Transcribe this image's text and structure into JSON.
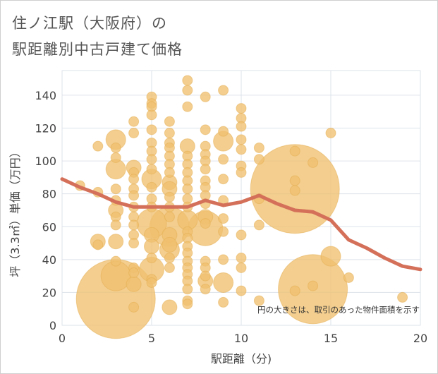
{
  "chart_data": {
    "type": "scatter",
    "title_line1": "住ノ江駅（大阪府）の",
    "title_line2": "駅距離別中古戸建て価格",
    "xlabel": "駅距離（分)",
    "ylabel": "坪（3.3㎡）単価（万円）",
    "xlim": [
      0,
      20
    ],
    "ylim": [
      0,
      155
    ],
    "xticks": [
      0,
      5,
      10,
      15,
      20
    ],
    "yticks": [
      0,
      20,
      40,
      60,
      80,
      100,
      120,
      140
    ],
    "grid": true,
    "annotation": "円の大きさは、取引のあった物件面積を示す",
    "colors": {
      "bubble": "#f0c070",
      "bubble_stroke": "#e6ad4f",
      "trend": "#d4705a",
      "grid": "#dde3ea"
    },
    "trend_line": {
      "x": [
        0,
        1,
        2,
        3,
        4,
        5,
        6,
        7,
        8,
        9,
        10,
        11,
        12,
        13,
        14,
        15,
        16,
        17,
        18,
        19,
        20
      ],
      "y": [
        89,
        84,
        80,
        75,
        72,
        72,
        72,
        72,
        76,
        73,
        75,
        79,
        74,
        70,
        69,
        64,
        52,
        47,
        41,
        36,
        34
      ]
    },
    "series": [
      {
        "name": "transactions",
        "points": [
          {
            "x": 1,
            "y": 85,
            "s": 1
          },
          {
            "x": 2,
            "y": 109,
            "s": 1
          },
          {
            "x": 2,
            "y": 81,
            "s": 1
          },
          {
            "x": 2,
            "y": 51,
            "s": 1.5
          },
          {
            "x": 2,
            "y": 49,
            "s": 1
          },
          {
            "x": 3,
            "y": 113,
            "s": 2
          },
          {
            "x": 3,
            "y": 108,
            "s": 1
          },
          {
            "x": 3,
            "y": 102,
            "s": 1
          },
          {
            "x": 3,
            "y": 95,
            "s": 2
          },
          {
            "x": 3,
            "y": 83,
            "s": 1
          },
          {
            "x": 3,
            "y": 76,
            "s": 1
          },
          {
            "x": 3,
            "y": 70,
            "s": 1.5
          },
          {
            "x": 3,
            "y": 66,
            "s": 1
          },
          {
            "x": 3,
            "y": 61,
            "s": 1
          },
          {
            "x": 3,
            "y": 51,
            "s": 1.5
          },
          {
            "x": 3,
            "y": 39,
            "s": 1
          },
          {
            "x": 3,
            "y": 30,
            "s": 3
          },
          {
            "x": 3,
            "y": 16,
            "s": 8
          },
          {
            "x": 4,
            "y": 124,
            "s": 1
          },
          {
            "x": 4,
            "y": 117,
            "s": 1
          },
          {
            "x": 4,
            "y": 96,
            "s": 1.5
          },
          {
            "x": 4,
            "y": 93,
            "s": 1
          },
          {
            "x": 4,
            "y": 89,
            "s": 1
          },
          {
            "x": 4,
            "y": 83,
            "s": 1
          },
          {
            "x": 4,
            "y": 79,
            "s": 1
          },
          {
            "x": 4,
            "y": 72,
            "s": 1
          },
          {
            "x": 4,
            "y": 66,
            "s": 1
          },
          {
            "x": 4,
            "y": 61,
            "s": 1
          },
          {
            "x": 4,
            "y": 55,
            "s": 1
          },
          {
            "x": 4,
            "y": 50,
            "s": 1
          },
          {
            "x": 4,
            "y": 35,
            "s": 1
          },
          {
            "x": 4,
            "y": 32,
            "s": 1
          },
          {
            "x": 4,
            "y": 25,
            "s": 1.5
          },
          {
            "x": 4,
            "y": 11,
            "s": 1
          },
          {
            "x": 5,
            "y": 139,
            "s": 1
          },
          {
            "x": 5,
            "y": 135,
            "s": 1
          },
          {
            "x": 5,
            "y": 133,
            "s": 1
          },
          {
            "x": 5,
            "y": 128,
            "s": 1
          },
          {
            "x": 5,
            "y": 119,
            "s": 1
          },
          {
            "x": 5,
            "y": 111,
            "s": 1
          },
          {
            "x": 5,
            "y": 106,
            "s": 1
          },
          {
            "x": 5,
            "y": 101,
            "s": 1
          },
          {
            "x": 5,
            "y": 95,
            "s": 1
          },
          {
            "x": 5,
            "y": 89,
            "s": 2
          },
          {
            "x": 5,
            "y": 84,
            "s": 1
          },
          {
            "x": 5,
            "y": 77,
            "s": 1
          },
          {
            "x": 5,
            "y": 72,
            "s": 1
          },
          {
            "x": 5,
            "y": 62,
            "s": 3
          },
          {
            "x": 5,
            "y": 55,
            "s": 1.5
          },
          {
            "x": 5,
            "y": 48,
            "s": 1.5
          },
          {
            "x": 5,
            "y": 41,
            "s": 1
          },
          {
            "x": 5,
            "y": 34,
            "s": 2.5
          },
          {
            "x": 5,
            "y": 28,
            "s": 1
          },
          {
            "x": 5,
            "y": 26,
            "s": 1
          },
          {
            "x": 6,
            "y": 124,
            "s": 1
          },
          {
            "x": 6,
            "y": 117,
            "s": 1
          },
          {
            "x": 6,
            "y": 111,
            "s": 1
          },
          {
            "x": 6,
            "y": 108,
            "s": 1
          },
          {
            "x": 6,
            "y": 103,
            "s": 1
          },
          {
            "x": 6,
            "y": 98,
            "s": 1
          },
          {
            "x": 6,
            "y": 93,
            "s": 1
          },
          {
            "x": 6,
            "y": 87,
            "s": 1.5
          },
          {
            "x": 6,
            "y": 83,
            "s": 1.5
          },
          {
            "x": 6,
            "y": 78,
            "s": 1
          },
          {
            "x": 6,
            "y": 72,
            "s": 1
          },
          {
            "x": 6,
            "y": 66,
            "s": 1
          },
          {
            "x": 6,
            "y": 60,
            "s": 4
          },
          {
            "x": 6,
            "y": 55,
            "s": 1.5
          },
          {
            "x": 6,
            "y": 49,
            "s": 1.5
          },
          {
            "x": 6,
            "y": 46,
            "s": 2
          },
          {
            "x": 6,
            "y": 41,
            "s": 1
          },
          {
            "x": 6,
            "y": 35,
            "s": 1
          },
          {
            "x": 6,
            "y": 11,
            "s": 1.5
          },
          {
            "x": 7,
            "y": 149,
            "s": 1
          },
          {
            "x": 7,
            "y": 143,
            "s": 1
          },
          {
            "x": 7,
            "y": 133,
            "s": 1
          },
          {
            "x": 7,
            "y": 109,
            "s": 1.5
          },
          {
            "x": 7,
            "y": 103,
            "s": 1
          },
          {
            "x": 7,
            "y": 98,
            "s": 1
          },
          {
            "x": 7,
            "y": 93,
            "s": 1
          },
          {
            "x": 7,
            "y": 88,
            "s": 1
          },
          {
            "x": 7,
            "y": 83,
            "s": 1
          },
          {
            "x": 7,
            "y": 77,
            "s": 1
          },
          {
            "x": 7,
            "y": 72,
            "s": 1
          },
          {
            "x": 7,
            "y": 64,
            "s": 2
          },
          {
            "x": 7,
            "y": 57,
            "s": 1
          },
          {
            "x": 7,
            "y": 53,
            "s": 1
          },
          {
            "x": 7,
            "y": 48,
            "s": 1
          },
          {
            "x": 7,
            "y": 44,
            "s": 1
          },
          {
            "x": 7,
            "y": 39,
            "s": 1
          },
          {
            "x": 7,
            "y": 35,
            "s": 1
          },
          {
            "x": 7,
            "y": 31,
            "s": 1
          },
          {
            "x": 7,
            "y": 27,
            "s": 1
          },
          {
            "x": 7,
            "y": 22,
            "s": 1
          },
          {
            "x": 7,
            "y": 15,
            "s": 1
          },
          {
            "x": 7,
            "y": 13,
            "s": 1
          },
          {
            "x": 8,
            "y": 139,
            "s": 1
          },
          {
            "x": 8,
            "y": 119,
            "s": 1
          },
          {
            "x": 8,
            "y": 109,
            "s": 1
          },
          {
            "x": 8,
            "y": 104,
            "s": 1
          },
          {
            "x": 8,
            "y": 100,
            "s": 1
          },
          {
            "x": 8,
            "y": 95,
            "s": 1
          },
          {
            "x": 8,
            "y": 88,
            "s": 1
          },
          {
            "x": 8,
            "y": 84,
            "s": 1
          },
          {
            "x": 8,
            "y": 79,
            "s": 1
          },
          {
            "x": 8,
            "y": 74,
            "s": 1
          },
          {
            "x": 8,
            "y": 66,
            "s": 1.5
          },
          {
            "x": 8,
            "y": 62,
            "s": 1
          },
          {
            "x": 8,
            "y": 59,
            "s": 3.5
          },
          {
            "x": 8,
            "y": 39,
            "s": 1
          },
          {
            "x": 8,
            "y": 35,
            "s": 1
          },
          {
            "x": 8,
            "y": 30,
            "s": 1
          },
          {
            "x": 8,
            "y": 27,
            "s": 1.5
          },
          {
            "x": 8,
            "y": 22,
            "s": 1
          },
          {
            "x": 9,
            "y": 143,
            "s": 1
          },
          {
            "x": 9,
            "y": 118,
            "s": 1
          },
          {
            "x": 9,
            "y": 112,
            "s": 2
          },
          {
            "x": 9,
            "y": 101,
            "s": 1
          },
          {
            "x": 9,
            "y": 89,
            "s": 1
          },
          {
            "x": 9,
            "y": 76,
            "s": 1
          },
          {
            "x": 9,
            "y": 65,
            "s": 1
          },
          {
            "x": 9,
            "y": 57,
            "s": 1
          },
          {
            "x": 9,
            "y": 40,
            "s": 1
          },
          {
            "x": 9,
            "y": 26,
            "s": 2
          },
          {
            "x": 9,
            "y": 14,
            "s": 1
          },
          {
            "x": 10,
            "y": 132,
            "s": 1
          },
          {
            "x": 10,
            "y": 126,
            "s": 1
          },
          {
            "x": 10,
            "y": 121,
            "s": 1
          },
          {
            "x": 10,
            "y": 113,
            "s": 1
          },
          {
            "x": 10,
            "y": 107,
            "s": 1
          },
          {
            "x": 10,
            "y": 97,
            "s": 1
          },
          {
            "x": 10,
            "y": 93,
            "s": 1
          },
          {
            "x": 10,
            "y": 55,
            "s": 1
          },
          {
            "x": 10,
            "y": 41,
            "s": 1
          },
          {
            "x": 10,
            "y": 35,
            "s": 1
          },
          {
            "x": 10,
            "y": 21,
            "s": 1
          },
          {
            "x": 11,
            "y": 108,
            "s": 1
          },
          {
            "x": 11,
            "y": 101,
            "s": 1
          },
          {
            "x": 11,
            "y": 77,
            "s": 1
          },
          {
            "x": 11,
            "y": 61,
            "s": 1
          },
          {
            "x": 11,
            "y": 15,
            "s": 1
          },
          {
            "x": 13,
            "y": 106,
            "s": 1
          },
          {
            "x": 13,
            "y": 88,
            "s": 1
          },
          {
            "x": 13,
            "y": 83,
            "s": 9
          },
          {
            "x": 13,
            "y": 82,
            "s": 1
          },
          {
            "x": 13,
            "y": 21,
            "s": 1
          },
          {
            "x": 14,
            "y": 99,
            "s": 1
          },
          {
            "x": 14,
            "y": 22,
            "s": 7
          },
          {
            "x": 14,
            "y": 24,
            "s": 1
          },
          {
            "x": 15,
            "y": 117,
            "s": 1
          },
          {
            "x": 15,
            "y": 42,
            "s": 2
          },
          {
            "x": 16,
            "y": 29,
            "s": 1
          },
          {
            "x": 19,
            "y": 17,
            "s": 1
          }
        ]
      }
    ]
  }
}
